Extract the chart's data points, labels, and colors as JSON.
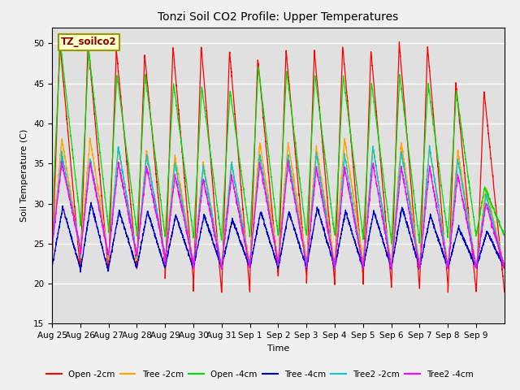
{
  "title": "Tonzi Soil CO2 Profile: Upper Temperatures",
  "xlabel": "Time",
  "ylabel": "Soil Temperature (C)",
  "ylim": [
    15,
    52
  ],
  "yticks": [
    15,
    20,
    25,
    30,
    35,
    40,
    45,
    50
  ],
  "legend_label": "TZ_soilco2",
  "background_color": "#d8d8d8",
  "series": [
    {
      "label": "Open -2cm",
      "color": "#ff0000"
    },
    {
      "label": "Tree -2cm",
      "color": "#ffa500"
    },
    {
      "label": "Open -4cm",
      "color": "#00dd00"
    },
    {
      "label": "Tree -4cm",
      "color": "#0000cc"
    },
    {
      "label": "Tree2 -2cm",
      "color": "#00cccc"
    },
    {
      "label": "Tree2 -4cm",
      "color": "#ff00ff"
    }
  ],
  "x_tick_labels": [
    "Aug 25",
    "Aug 26",
    "Aug 27",
    "Aug 28",
    "Aug 29",
    "Aug 30",
    "Aug 31",
    "Sep 1",
    "Sep 2",
    "Sep 3",
    "Sep 4",
    "Sep 5",
    "Sep 6",
    "Sep 7",
    "Sep 8",
    "Sep 9"
  ],
  "num_days": 16
}
